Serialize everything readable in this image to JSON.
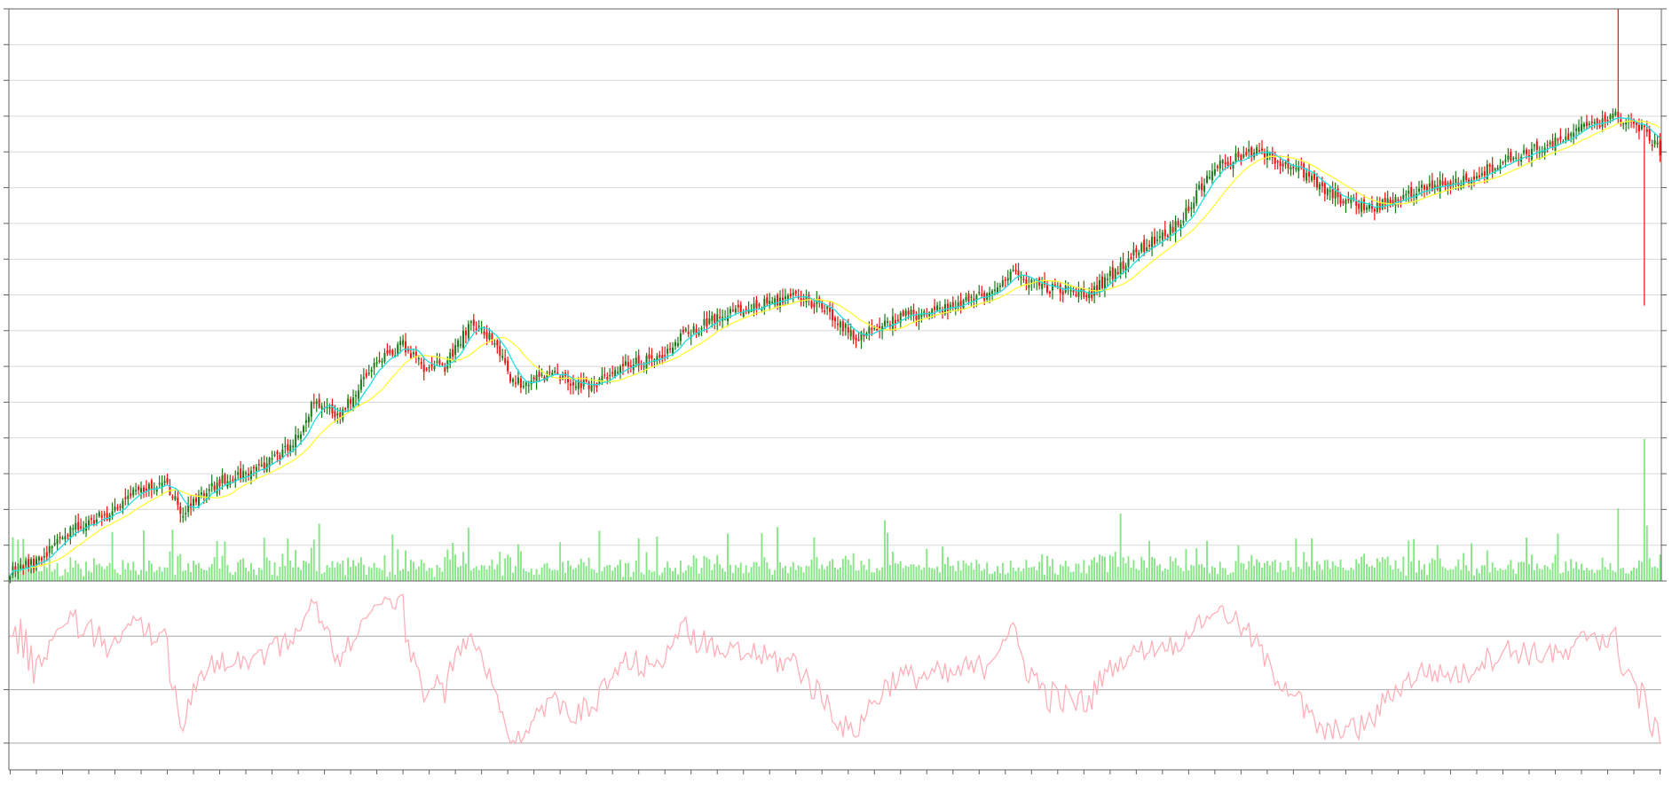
{
  "chart_data": {
    "type": "candlestick",
    "price_ylim": [
      0,
      160
    ],
    "volume_max": 160,
    "osc_ylim": [
      20,
      90
    ],
    "osc_levels": [
      30,
      50,
      70
    ],
    "grid": "horizontal",
    "legend": "none",
    "colors": {
      "up": "#1a7a1a",
      "down": "#ee1111",
      "ma_fast": "#22dde0",
      "ma_slow": "#ffff33",
      "volume": "#86e686",
      "oscillator": "#ffb0b8",
      "grid": "#d8d8d8",
      "axis": "#606060"
    },
    "close_anchors": [
      [
        0,
        3
      ],
      [
        10,
        5
      ],
      [
        20,
        13
      ],
      [
        28,
        16
      ],
      [
        38,
        19
      ],
      [
        50,
        26
      ],
      [
        60,
        27
      ],
      [
        66,
        19
      ],
      [
        80,
        28
      ],
      [
        96,
        32
      ],
      [
        108,
        38
      ],
      [
        116,
        50
      ],
      [
        126,
        46
      ],
      [
        136,
        58
      ],
      [
        142,
        62
      ],
      [
        150,
        66
      ],
      [
        158,
        60
      ],
      [
        166,
        60
      ],
      [
        176,
        72
      ],
      [
        184,
        68
      ],
      [
        192,
        55
      ],
      [
        206,
        58
      ],
      [
        222,
        54
      ],
      [
        234,
        60
      ],
      [
        246,
        62
      ],
      [
        260,
        70
      ],
      [
        272,
        74
      ],
      [
        282,
        76
      ],
      [
        300,
        80
      ],
      [
        312,
        76
      ],
      [
        322,
        68
      ],
      [
        340,
        74
      ],
      [
        358,
        76
      ],
      [
        372,
        80
      ],
      [
        382,
        86
      ],
      [
        396,
        82
      ],
      [
        412,
        80
      ],
      [
        430,
        92
      ],
      [
        446,
        100
      ],
      [
        460,
        116
      ],
      [
        476,
        120
      ],
      [
        490,
        116
      ],
      [
        504,
        108
      ],
      [
        520,
        104
      ],
      [
        540,
        110
      ],
      [
        556,
        112
      ],
      [
        566,
        116
      ],
      [
        580,
        120
      ],
      [
        596,
        124
      ],
      [
        602,
        128
      ],
      [
        614,
        130
      ],
      [
        624,
        126
      ],
      [
        630,
        120
      ]
    ],
    "spike": {
      "index": 614,
      "high": 160
    },
    "crash": {
      "index": 624,
      "low": 77
    }
  }
}
